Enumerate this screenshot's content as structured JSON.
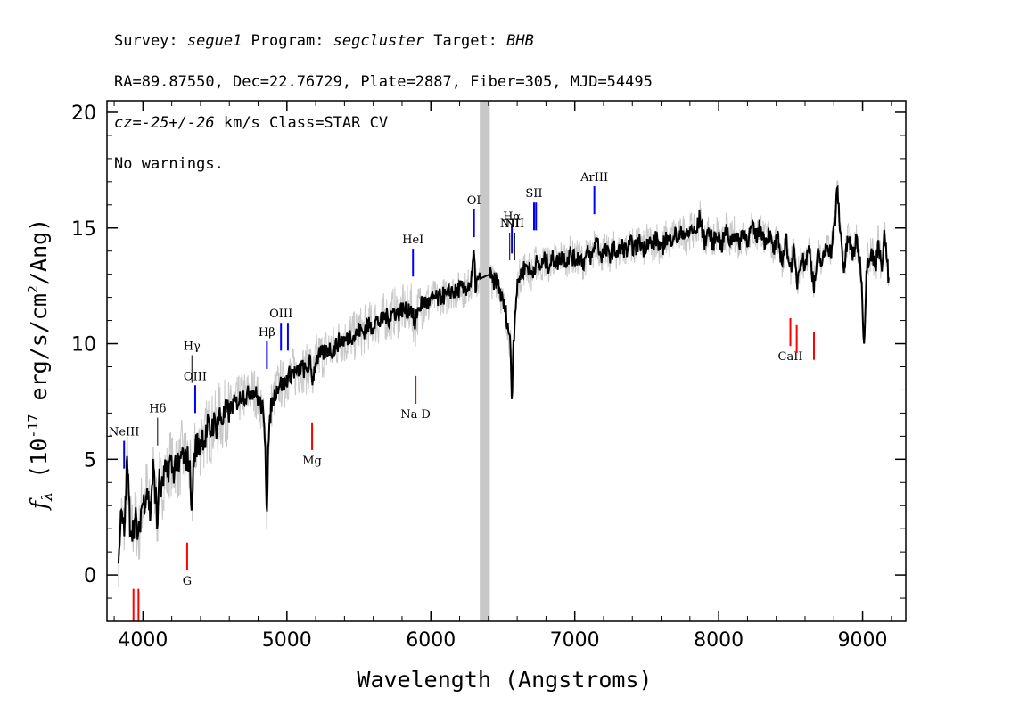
{
  "header": {
    "line1": {
      "survey_label": "Survey: ",
      "survey": "segue1",
      "program_label": " Program: ",
      "program": "segcluster",
      "target_label": " Target: ",
      "target": "BHB"
    },
    "line2": "RA=89.87550, Dec=22.76729, Plate=2887, Fiber=305, MJD=54495",
    "line3": {
      "cz_label": "cz=",
      "cz": "-25+/-26",
      "cz_unit": " km/s Class=STAR CV"
    },
    "line4": "No warnings."
  },
  "chart_data": {
    "type": "line",
    "xlabel": "Wavelength (Angstroms)",
    "ylabel": "f_λ (10^-17 erg/s/cm^2/Ang)",
    "ylabel_parts": {
      "f": "f",
      "sub": "λ",
      "pre": " (10",
      "exp1": "-17",
      "mid": " erg/s/cm",
      "exp2": "2",
      "post": "/Ang)"
    },
    "xlim": [
      3750,
      9300
    ],
    "ylim": [
      -2,
      20.5
    ],
    "x_ticks": [
      4000,
      5000,
      6000,
      7000,
      8000,
      9000
    ],
    "x_tick_labels": [
      "4000",
      "5000",
      "6000",
      "7000",
      "8000",
      "9000"
    ],
    "y_ticks": [
      0,
      5,
      10,
      15,
      20
    ],
    "y_tick_labels": [
      "0",
      "5",
      "10",
      "15",
      "20"
    ],
    "masked_band": [
      6340,
      6410
    ],
    "colors": {
      "flux": "#000000",
      "noise": "#c8c8c8",
      "mask": "#c8c8c8",
      "emission": "#0000ff",
      "absorption": "#ff0000",
      "sky": "#000000"
    },
    "series": [
      {
        "role": "smoothed flux",
        "points": [
          [
            3830,
            1.0
          ],
          [
            3850,
            2.6
          ],
          [
            3870,
            1.8
          ],
          [
            3890,
            5.0
          ],
          [
            3910,
            2.2
          ],
          [
            3930,
            2.0
          ],
          [
            3950,
            2.4
          ],
          [
            3970,
            1.5
          ],
          [
            3990,
            3.0
          ],
          [
            4010,
            3.2
          ],
          [
            4030,
            3.8
          ],
          [
            4050,
            2.6
          ],
          [
            4070,
            4.6
          ],
          [
            4090,
            3.4
          ],
          [
            4100,
            1.8
          ],
          [
            4110,
            4.2
          ],
          [
            4130,
            3.6
          ],
          [
            4150,
            4.5
          ],
          [
            4170,
            4.3
          ],
          [
            4190,
            5.0
          ],
          [
            4210,
            4.4
          ],
          [
            4230,
            5.0
          ],
          [
            4250,
            4.5
          ],
          [
            4270,
            5.3
          ],
          [
            4290,
            4.9
          ],
          [
            4310,
            5.1
          ],
          [
            4330,
            4.3
          ],
          [
            4340,
            2.6
          ],
          [
            4350,
            4.7
          ],
          [
            4370,
            5.7
          ],
          [
            4390,
            5.5
          ],
          [
            4410,
            6.1
          ],
          [
            4430,
            5.8
          ],
          [
            4450,
            6.4
          ],
          [
            4470,
            6.2
          ],
          [
            4490,
            6.6
          ],
          [
            4510,
            6.4
          ],
          [
            4530,
            6.9
          ],
          [
            4550,
            6.7
          ],
          [
            4570,
            7.0
          ],
          [
            4600,
            7.1
          ],
          [
            4630,
            7.4
          ],
          [
            4660,
            7.5
          ],
          [
            4690,
            7.8
          ],
          [
            4720,
            7.7
          ],
          [
            4750,
            8.0
          ],
          [
            4780,
            7.9
          ],
          [
            4800,
            7.6
          ],
          [
            4830,
            7.2
          ],
          [
            4850,
            5.8
          ],
          [
            4860,
            2.5
          ],
          [
            4870,
            5.4
          ],
          [
            4890,
            7.3
          ],
          [
            4920,
            7.9
          ],
          [
            4950,
            8.3
          ],
          [
            4980,
            8.2
          ],
          [
            5010,
            8.6
          ],
          [
            5040,
            8.8
          ],
          [
            5070,
            8.7
          ],
          [
            5100,
            9.0
          ],
          [
            5130,
            8.8
          ],
          [
            5160,
            9.2
          ],
          [
            5180,
            8.4
          ],
          [
            5200,
            9.3
          ],
          [
            5230,
            9.5
          ],
          [
            5260,
            9.6
          ],
          [
            5290,
            9.8
          ],
          [
            5320,
            9.7
          ],
          [
            5350,
            10.0
          ],
          [
            5380,
            10.2
          ],
          [
            5410,
            10.1
          ],
          [
            5440,
            10.4
          ],
          [
            5470,
            10.3
          ],
          [
            5500,
            10.6
          ],
          [
            5530,
            10.5
          ],
          [
            5560,
            10.8
          ],
          [
            5590,
            10.7
          ],
          [
            5620,
            11.0
          ],
          [
            5650,
            10.9
          ],
          [
            5680,
            11.2
          ],
          [
            5710,
            11.1
          ],
          [
            5740,
            11.4
          ],
          [
            5770,
            11.3
          ],
          [
            5800,
            11.5
          ],
          [
            5830,
            11.4
          ],
          [
            5860,
            11.6
          ],
          [
            5880,
            11.1
          ],
          [
            5890,
            10.5
          ],
          [
            5900,
            11.3
          ],
          [
            5930,
            11.7
          ],
          [
            5960,
            11.8
          ],
          [
            5990,
            11.7
          ],
          [
            6020,
            12.0
          ],
          [
            6050,
            11.9
          ],
          [
            6080,
            12.1
          ],
          [
            6110,
            12.0
          ],
          [
            6140,
            12.3
          ],
          [
            6170,
            12.2
          ],
          [
            6200,
            12.4
          ],
          [
            6230,
            12.3
          ],
          [
            6260,
            12.5
          ],
          [
            6280,
            12.6
          ],
          [
            6300,
            13.9
          ],
          [
            6310,
            12.5
          ],
          [
            6340,
            12.8
          ],
          [
            6410,
            13.0
          ],
          [
            6430,
            12.6
          ],
          [
            6460,
            12.8
          ],
          [
            6490,
            12.0
          ],
          [
            6520,
            11.4
          ],
          [
            6540,
            10.6
          ],
          [
            6555,
            9.8
          ],
          [
            6563,
            7.2
          ],
          [
            6570,
            9.6
          ],
          [
            6590,
            11.8
          ],
          [
            6610,
            12.8
          ],
          [
            6640,
            13.2
          ],
          [
            6670,
            13.4
          ],
          [
            6700,
            13.0
          ],
          [
            6730,
            13.5
          ],
          [
            6760,
            13.3
          ],
          [
            6790,
            13.6
          ],
          [
            6820,
            13.4
          ],
          [
            6850,
            13.7
          ],
          [
            6880,
            13.5
          ],
          [
            6910,
            13.8
          ],
          [
            6940,
            13.6
          ],
          [
            6970,
            13.9
          ],
          [
            7000,
            13.6
          ],
          [
            7030,
            13.8
          ],
          [
            7060,
            13.5
          ],
          [
            7090,
            13.9
          ],
          [
            7120,
            13.7
          ],
          [
            7150,
            14.6
          ],
          [
            7180,
            13.8
          ],
          [
            7210,
            14.0
          ],
          [
            7240,
            13.8
          ],
          [
            7270,
            14.1
          ],
          [
            7300,
            13.9
          ],
          [
            7330,
            14.2
          ],
          [
            7360,
            14.0
          ],
          [
            7390,
            14.3
          ],
          [
            7420,
            14.1
          ],
          [
            7450,
            14.4
          ],
          [
            7480,
            14.1
          ],
          [
            7510,
            14.5
          ],
          [
            7540,
            14.2
          ],
          [
            7570,
            14.6
          ],
          [
            7600,
            13.9
          ],
          [
            7630,
            14.6
          ],
          [
            7660,
            14.4
          ],
          [
            7690,
            14.8
          ],
          [
            7720,
            14.5
          ],
          [
            7750,
            14.9
          ],
          [
            7780,
            14.6
          ],
          [
            7810,
            15.0
          ],
          [
            7840,
            14.7
          ],
          [
            7870,
            15.5
          ],
          [
            7900,
            14.4
          ],
          [
            7930,
            14.9
          ],
          [
            7960,
            14.3
          ],
          [
            7990,
            14.8
          ],
          [
            8020,
            14.2
          ],
          [
            8050,
            14.9
          ],
          [
            8080,
            14.4
          ],
          [
            8110,
            14.8
          ],
          [
            8140,
            14.3
          ],
          [
            8170,
            14.9
          ],
          [
            8200,
            14.5
          ],
          [
            8230,
            15.0
          ],
          [
            8260,
            14.6
          ],
          [
            8290,
            15.1
          ],
          [
            8320,
            14.4
          ],
          [
            8350,
            14.8
          ],
          [
            8380,
            14.0
          ],
          [
            8410,
            14.5
          ],
          [
            8440,
            13.6
          ],
          [
            8470,
            14.4
          ],
          [
            8500,
            13.2
          ],
          [
            8520,
            14.0
          ],
          [
            8545,
            12.6
          ],
          [
            8570,
            13.8
          ],
          [
            8600,
            13.4
          ],
          [
            8630,
            14.2
          ],
          [
            8662,
            12.4
          ],
          [
            8690,
            13.8
          ],
          [
            8720,
            13.4
          ],
          [
            8750,
            14.4
          ],
          [
            8780,
            13.9
          ],
          [
            8810,
            15.4
          ],
          [
            8825,
            16.8
          ],
          [
            8840,
            15.2
          ],
          [
            8870,
            13.2
          ],
          [
            8900,
            14.6
          ],
          [
            8930,
            13.8
          ],
          [
            8960,
            14.5
          ],
          [
            8990,
            13.1
          ],
          [
            9010,
            10.0
          ],
          [
            9030,
            13.5
          ],
          [
            9060,
            14.0
          ],
          [
            9090,
            13.2
          ],
          [
            9110,
            14.6
          ],
          [
            9130,
            13.1
          ],
          [
            9150,
            14.8
          ],
          [
            9170,
            13.6
          ],
          [
            9185,
            12.2
          ]
        ]
      }
    ],
    "line_markers": {
      "emission": [
        {
          "label": "NeIII",
          "x": 3869,
          "y0": 4.6,
          "y1": 5.8
        },
        {
          "label": "OIII",
          "x": 4363,
          "y0": 7.0,
          "y1": 8.2
        },
        {
          "label": "Hβ",
          "x": 4861,
          "y0": 8.9,
          "y1": 10.1
        },
        {
          "label": "OIII",
          "x": 4959,
          "y0": 9.7,
          "y1": 10.9
        },
        {
          "label": "",
          "x": 5007,
          "y0": 9.7,
          "y1": 10.9
        },
        {
          "label": "HeI",
          "x": 5876,
          "y0": 12.9,
          "y1": 14.1
        },
        {
          "label": "OI",
          "x": 6300,
          "y0": 14.6,
          "y1": 15.8
        },
        {
          "label": "Hα",
          "x": 6563,
          "y0": 13.9,
          "y1": 15.1
        },
        {
          "label": "SII",
          "x": 6717,
          "y0": 14.9,
          "y1": 16.1
        },
        {
          "label": "",
          "x": 6731,
          "y0": 14.9,
          "y1": 16.1
        },
        {
          "label": "ArIII",
          "x": 7136,
          "y0": 15.6,
          "y1": 16.8
        }
      ],
      "absorption": [
        {
          "label": "",
          "x": 3934,
          "y0": -2.0,
          "y1": -0.6
        },
        {
          "label": "",
          "x": 3969,
          "y0": -2.0,
          "y1": -0.6
        },
        {
          "label": "G",
          "x": 4307,
          "y0": 0.2,
          "y1": 1.4
        },
        {
          "label": "Mg",
          "x": 5175,
          "y0": 5.4,
          "y1": 6.6
        },
        {
          "label": "Na D",
          "x": 5894,
          "y0": 7.4,
          "y1": 8.6
        },
        {
          "label": "CaII",
          "x": 8498,
          "y0": 9.9,
          "y1": 11.1
        },
        {
          "label": "",
          "x": 8542,
          "y0": 9.6,
          "y1": 10.8
        },
        {
          "label": "",
          "x": 8662,
          "y0": 9.3,
          "y1": 10.5
        }
      ],
      "sky": [
        {
          "label": "Hδ",
          "x": 4102,
          "y0": 5.6,
          "y1": 6.8
        },
        {
          "label": "Hγ",
          "x": 4340,
          "y0": 8.3,
          "y1": 9.5
        },
        {
          "label": "NII",
          "x": 6548,
          "y0": 13.6,
          "y1": 14.8
        },
        {
          "label": "NII",
          "x": 6583,
          "y0": 13.6,
          "y1": 14.8
        }
      ]
    }
  }
}
